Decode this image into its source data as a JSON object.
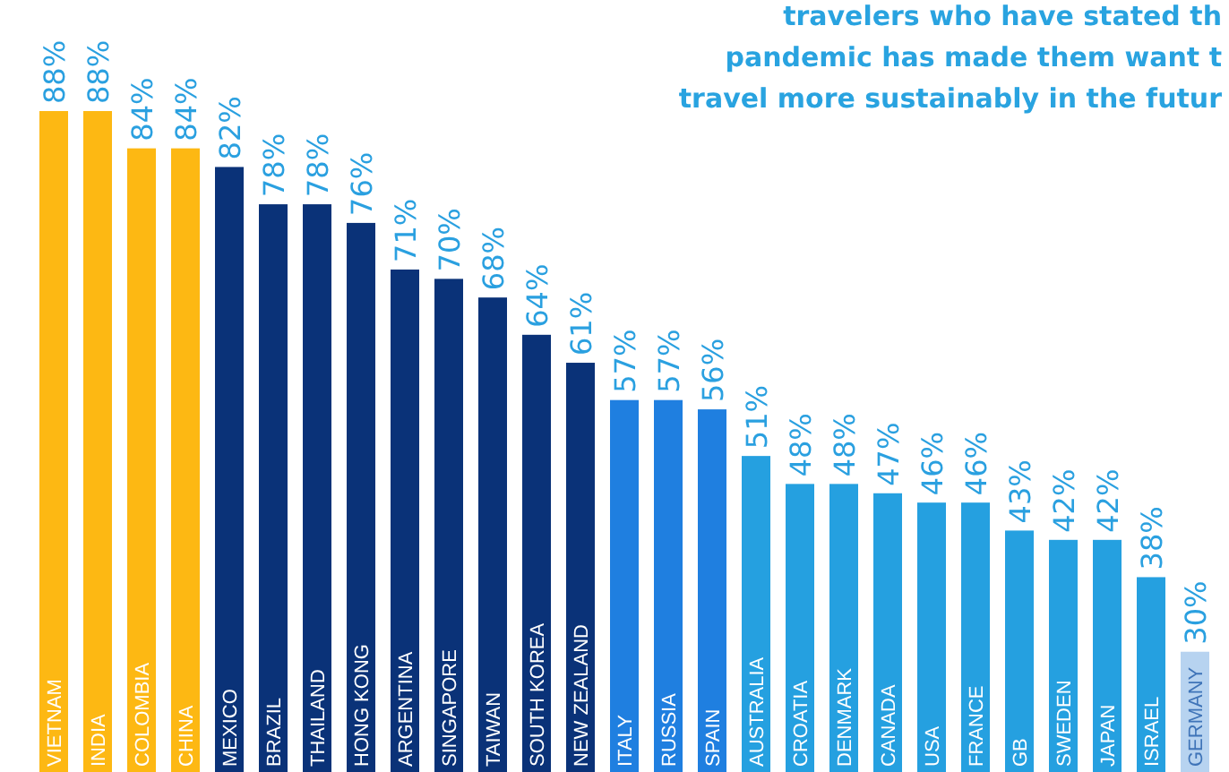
{
  "chart_data": {
    "type": "bar",
    "title": "travelers who have stated th\npandemic has made them want t\ntravel more sustainably in the futur",
    "categories": [
      "VIETNAM",
      "INDIA",
      "COLOMBIA",
      "CHINA",
      "MEXICO",
      "BRAZIL",
      "THAILAND",
      "HONG KONG",
      "ARGENTINA",
      "SINGAPORE",
      "TAIWAN",
      "SOUTH KOREA",
      "NEW ZEALAND",
      "ITALY",
      "RUSSIA",
      "SPAIN",
      "AUSTRALIA",
      "CROATIA",
      "DENMARK",
      "CANADA",
      "USA",
      "FRANCE",
      "GB",
      "SWEDEN",
      "JAPAN",
      "ISRAEL",
      "GERMANY"
    ],
    "values": [
      88,
      88,
      84,
      84,
      82,
      78,
      78,
      76,
      71,
      70,
      68,
      64,
      61,
      57,
      57,
      56,
      51,
      48,
      48,
      47,
      46,
      46,
      43,
      42,
      42,
      38,
      30
    ],
    "value_labels": [
      "88%",
      "88%",
      "84%",
      "84%",
      "82%",
      "78%",
      "78%",
      "76%",
      "71%",
      "70%",
      "68%",
      "64%",
      "61%",
      "57%",
      "57%",
      "56%",
      "51%",
      "48%",
      "48%",
      "47%",
      "46%",
      "46%",
      "43%",
      "42%",
      "42%",
      "38%",
      "30%"
    ],
    "colors": [
      "#fdb813",
      "#fdb813",
      "#fdb813",
      "#fdb813",
      "#0a3278",
      "#0a3278",
      "#0a3278",
      "#0a3278",
      "#0a3278",
      "#0a3278",
      "#0a3278",
      "#0a3278",
      "#0a3278",
      "#1f7fe0",
      "#1f7fe0",
      "#1f7fe0",
      "#25a0e0",
      "#25a0e0",
      "#25a0e0",
      "#25a0e0",
      "#25a0e0",
      "#25a0e0",
      "#25a0e0",
      "#25a0e0",
      "#25a0e0",
      "#25a0e0",
      "#b7d3f0"
    ]
  }
}
